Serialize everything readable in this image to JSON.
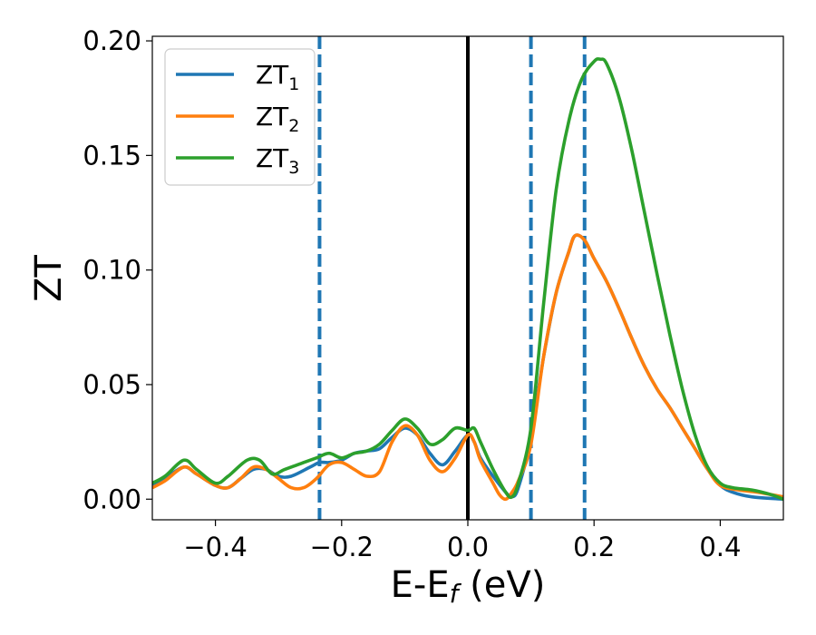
{
  "chart_data": {
    "type": "line",
    "title": "",
    "xlabel_main": "E-E",
    "xlabel_sub": "f",
    "xlabel_unit": " (eV)",
    "ylabel": "ZT",
    "xlim": [
      -0.5,
      0.5
    ],
    "ylim": [
      -0.009,
      0.202
    ],
    "xticks": [
      -0.4,
      -0.2,
      0.0,
      0.2,
      0.4
    ],
    "xtick_labels": [
      "−0.4",
      "−0.2",
      "0.0",
      "0.2",
      "0.4"
    ],
    "yticks": [
      0.0,
      0.05,
      0.1,
      0.15,
      0.2
    ],
    "ytick_labels": [
      "0.00",
      "0.05",
      "0.10",
      "0.15",
      "0.20"
    ],
    "grid": false,
    "legend_position": "top-left",
    "fermi_line": {
      "x": 0.0,
      "color": "#000000"
    },
    "dashed_lines": {
      "x": [
        -0.235,
        0.1,
        0.185
      ],
      "color": "#1f77b4"
    },
    "series": [
      {
        "name": "ZT",
        "sub": "1",
        "color": "#1f77b4",
        "points": [
          [
            -0.5,
            0.006
          ],
          [
            -0.48,
            0.009
          ],
          [
            -0.45,
            0.014
          ],
          [
            -0.43,
            0.011
          ],
          [
            -0.4,
            0.006
          ],
          [
            -0.38,
            0.005
          ],
          [
            -0.36,
            0.009
          ],
          [
            -0.34,
            0.013
          ],
          [
            -0.32,
            0.013
          ],
          [
            -0.3,
            0.01
          ],
          [
            -0.28,
            0.01
          ],
          [
            -0.25,
            0.014
          ],
          [
            -0.235,
            0.016
          ],
          [
            -0.22,
            0.016
          ],
          [
            -0.2,
            0.017
          ],
          [
            -0.18,
            0.02
          ],
          [
            -0.16,
            0.021
          ],
          [
            -0.14,
            0.022
          ],
          [
            -0.12,
            0.027
          ],
          [
            -0.1,
            0.031
          ],
          [
            -0.08,
            0.028
          ],
          [
            -0.06,
            0.02
          ],
          [
            -0.04,
            0.015
          ],
          [
            -0.02,
            0.021
          ],
          [
            0.0,
            0.028
          ],
          [
            0.01,
            0.025
          ],
          [
            0.02,
            0.018
          ],
          [
            0.04,
            0.01
          ],
          [
            0.06,
            0.003
          ],
          [
            0.07,
            0.001
          ],
          [
            0.08,
            0.005
          ],
          [
            0.1,
            0.027
          ],
          [
            0.12,
            0.062
          ],
          [
            0.14,
            0.09
          ],
          [
            0.16,
            0.108
          ],
          [
            0.17,
            0.115
          ],
          [
            0.185,
            0.113
          ],
          [
            0.2,
            0.105
          ],
          [
            0.22,
            0.095
          ],
          [
            0.24,
            0.083
          ],
          [
            0.26,
            0.07
          ],
          [
            0.28,
            0.058
          ],
          [
            0.3,
            0.048
          ],
          [
            0.32,
            0.04
          ],
          [
            0.34,
            0.031
          ],
          [
            0.36,
            0.022
          ],
          [
            0.38,
            0.013
          ],
          [
            0.4,
            0.006
          ],
          [
            0.42,
            0.003
          ],
          [
            0.45,
            0.001
          ],
          [
            0.5,
            0.0
          ]
        ]
      },
      {
        "name": "ZT",
        "sub": "2",
        "color": "#ff7f0e",
        "points": [
          [
            -0.5,
            0.005
          ],
          [
            -0.48,
            0.008
          ],
          [
            -0.45,
            0.014
          ],
          [
            -0.43,
            0.011
          ],
          [
            -0.4,
            0.006
          ],
          [
            -0.38,
            0.005
          ],
          [
            -0.36,
            0.009
          ],
          [
            -0.34,
            0.014
          ],
          [
            -0.32,
            0.013
          ],
          [
            -0.3,
            0.009
          ],
          [
            -0.28,
            0.005
          ],
          [
            -0.26,
            0.005
          ],
          [
            -0.24,
            0.009
          ],
          [
            -0.22,
            0.015
          ],
          [
            -0.2,
            0.016
          ],
          [
            -0.18,
            0.013
          ],
          [
            -0.16,
            0.01
          ],
          [
            -0.14,
            0.012
          ],
          [
            -0.12,
            0.025
          ],
          [
            -0.1,
            0.032
          ],
          [
            -0.08,
            0.028
          ],
          [
            -0.06,
            0.017
          ],
          [
            -0.04,
            0.012
          ],
          [
            -0.02,
            0.018
          ],
          [
            0.0,
            0.028
          ],
          [
            0.01,
            0.025
          ],
          [
            0.02,
            0.017
          ],
          [
            0.04,
            0.007
          ],
          [
            0.05,
            0.002
          ],
          [
            0.06,
            0.0
          ],
          [
            0.07,
            0.003
          ],
          [
            0.08,
            0.008
          ],
          [
            0.1,
            0.024
          ],
          [
            0.12,
            0.062
          ],
          [
            0.14,
            0.09
          ],
          [
            0.16,
            0.108
          ],
          [
            0.17,
            0.115
          ],
          [
            0.185,
            0.113
          ],
          [
            0.2,
            0.105
          ],
          [
            0.22,
            0.095
          ],
          [
            0.24,
            0.083
          ],
          [
            0.26,
            0.07
          ],
          [
            0.28,
            0.058
          ],
          [
            0.3,
            0.048
          ],
          [
            0.32,
            0.04
          ],
          [
            0.34,
            0.031
          ],
          [
            0.36,
            0.022
          ],
          [
            0.38,
            0.013
          ],
          [
            0.4,
            0.006
          ],
          [
            0.43,
            0.004
          ],
          [
            0.46,
            0.003
          ],
          [
            0.5,
            0.001
          ]
        ]
      },
      {
        "name": "ZT",
        "sub": "3",
        "color": "#2ca02c",
        "points": [
          [
            -0.5,
            0.007
          ],
          [
            -0.48,
            0.01
          ],
          [
            -0.45,
            0.017
          ],
          [
            -0.43,
            0.013
          ],
          [
            -0.4,
            0.007
          ],
          [
            -0.38,
            0.01
          ],
          [
            -0.35,
            0.017
          ],
          [
            -0.33,
            0.017
          ],
          [
            -0.31,
            0.011
          ],
          [
            -0.29,
            0.013
          ],
          [
            -0.26,
            0.016
          ],
          [
            -0.24,
            0.018
          ],
          [
            -0.22,
            0.02
          ],
          [
            -0.2,
            0.018
          ],
          [
            -0.18,
            0.02
          ],
          [
            -0.16,
            0.021
          ],
          [
            -0.14,
            0.024
          ],
          [
            -0.12,
            0.03
          ],
          [
            -0.1,
            0.035
          ],
          [
            -0.08,
            0.031
          ],
          [
            -0.06,
            0.024
          ],
          [
            -0.04,
            0.026
          ],
          [
            -0.02,
            0.031
          ],
          [
            0.0,
            0.03
          ],
          [
            0.01,
            0.031
          ],
          [
            0.02,
            0.025
          ],
          [
            0.04,
            0.013
          ],
          [
            0.06,
            0.003
          ],
          [
            0.07,
            0.001
          ],
          [
            0.08,
            0.007
          ],
          [
            0.1,
            0.031
          ],
          [
            0.12,
            0.085
          ],
          [
            0.14,
            0.135
          ],
          [
            0.16,
            0.165
          ],
          [
            0.18,
            0.183
          ],
          [
            0.2,
            0.191
          ],
          [
            0.21,
            0.192
          ],
          [
            0.22,
            0.19
          ],
          [
            0.24,
            0.175
          ],
          [
            0.26,
            0.152
          ],
          [
            0.28,
            0.125
          ],
          [
            0.3,
            0.098
          ],
          [
            0.32,
            0.072
          ],
          [
            0.34,
            0.048
          ],
          [
            0.36,
            0.028
          ],
          [
            0.38,
            0.014
          ],
          [
            0.4,
            0.007
          ],
          [
            0.42,
            0.005
          ],
          [
            0.45,
            0.004
          ],
          [
            0.48,
            0.002
          ],
          [
            0.5,
            0.0
          ]
        ]
      }
    ]
  }
}
